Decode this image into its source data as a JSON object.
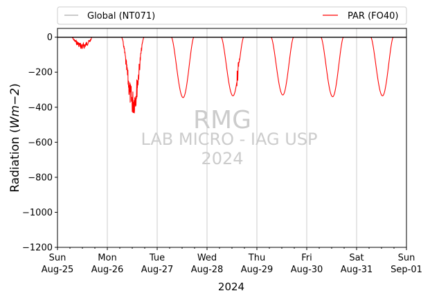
{
  "chart_data": {
    "type": "line",
    "xlabel": "2024",
    "ylabel_main": "Radiation (",
    "ylabel_unit": "Wm−2",
    "ylabel_close": ")",
    "ylim": [
      -1200,
      50
    ],
    "yticks": [
      0,
      -200,
      -400,
      -600,
      -800,
      -1000,
      -1200
    ],
    "ytick_labels": [
      "0",
      "−200",
      "−400",
      "−600",
      "−800",
      "−1000",
      "−1200"
    ],
    "xlim_days": [
      0,
      7
    ],
    "x_ticks": [
      {
        "day": 0,
        "weekday": "Sun",
        "date": "Aug-25"
      },
      {
        "day": 1,
        "weekday": "Mon",
        "date": "Aug-26"
      },
      {
        "day": 2,
        "weekday": "Tue",
        "date": "Aug-27"
      },
      {
        "day": 3,
        "weekday": "Wed",
        "date": "Aug-28"
      },
      {
        "day": 4,
        "weekday": "Thu",
        "date": "Aug-29"
      },
      {
        "day": 5,
        "weekday": "Fri",
        "date": "Aug-30"
      },
      {
        "day": 6,
        "weekday": "Sat",
        "date": "Aug-31"
      },
      {
        "day": 7,
        "weekday": "Sun",
        "date": "Sep-01"
      }
    ],
    "grid_x": true,
    "legend_position": "above plot",
    "series": [
      {
        "name": "Global (NT071)",
        "color": "#aaaaaa",
        "values": [
          0,
          0
        ]
      },
      {
        "name": "PAR (FO40)",
        "color": "#ff0000",
        "daily_minimum": [
          -70,
          -390,
          -345,
          -335,
          -330,
          -340,
          -335
        ]
      }
    ],
    "watermark": [
      "RMG",
      "LAB MICRO - IAG USP",
      "2024"
    ]
  },
  "colors": {
    "par": "#ff0000",
    "global": "#aaaaaa",
    "zero_line": "#000000",
    "grid": "#bfbfbf",
    "watermark": "#cccccc"
  }
}
